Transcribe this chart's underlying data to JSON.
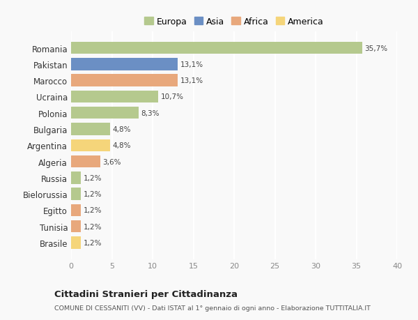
{
  "categories": [
    "Romania",
    "Pakistan",
    "Marocco",
    "Ucraina",
    "Polonia",
    "Bulgaria",
    "Argentina",
    "Algeria",
    "Russia",
    "Bielorussia",
    "Egitto",
    "Tunisia",
    "Brasile"
  ],
  "values": [
    35.7,
    13.1,
    13.1,
    10.7,
    8.3,
    4.8,
    4.8,
    3.6,
    1.2,
    1.2,
    1.2,
    1.2,
    1.2
  ],
  "labels": [
    "35,7%",
    "13,1%",
    "13,1%",
    "10,7%",
    "8,3%",
    "4,8%",
    "4,8%",
    "3,6%",
    "1,2%",
    "1,2%",
    "1,2%",
    "1,2%",
    "1,2%"
  ],
  "colors": [
    "#b5c98e",
    "#6b8fc4",
    "#e8a87c",
    "#b5c98e",
    "#b5c98e",
    "#b5c98e",
    "#f5d57a",
    "#e8a87c",
    "#b5c98e",
    "#b5c98e",
    "#e8a87c",
    "#e8a87c",
    "#f5d57a"
  ],
  "legend": {
    "labels": [
      "Europa",
      "Asia",
      "Africa",
      "America"
    ],
    "colors": [
      "#b5c98e",
      "#6b8fc4",
      "#e8a87c",
      "#f5d57a"
    ]
  },
  "xlim": [
    0,
    40
  ],
  "xticks": [
    0,
    5,
    10,
    15,
    20,
    25,
    30,
    35,
    40
  ],
  "title": "Cittadini Stranieri per Cittadinanza",
  "subtitle": "COMUNE DI CESSANITI (VV) - Dati ISTAT al 1° gennaio di ogni anno - Elaborazione TUTTITALIA.IT",
  "background_color": "#f9f9f9",
  "grid_color": "#ffffff",
  "bar_height": 0.75
}
